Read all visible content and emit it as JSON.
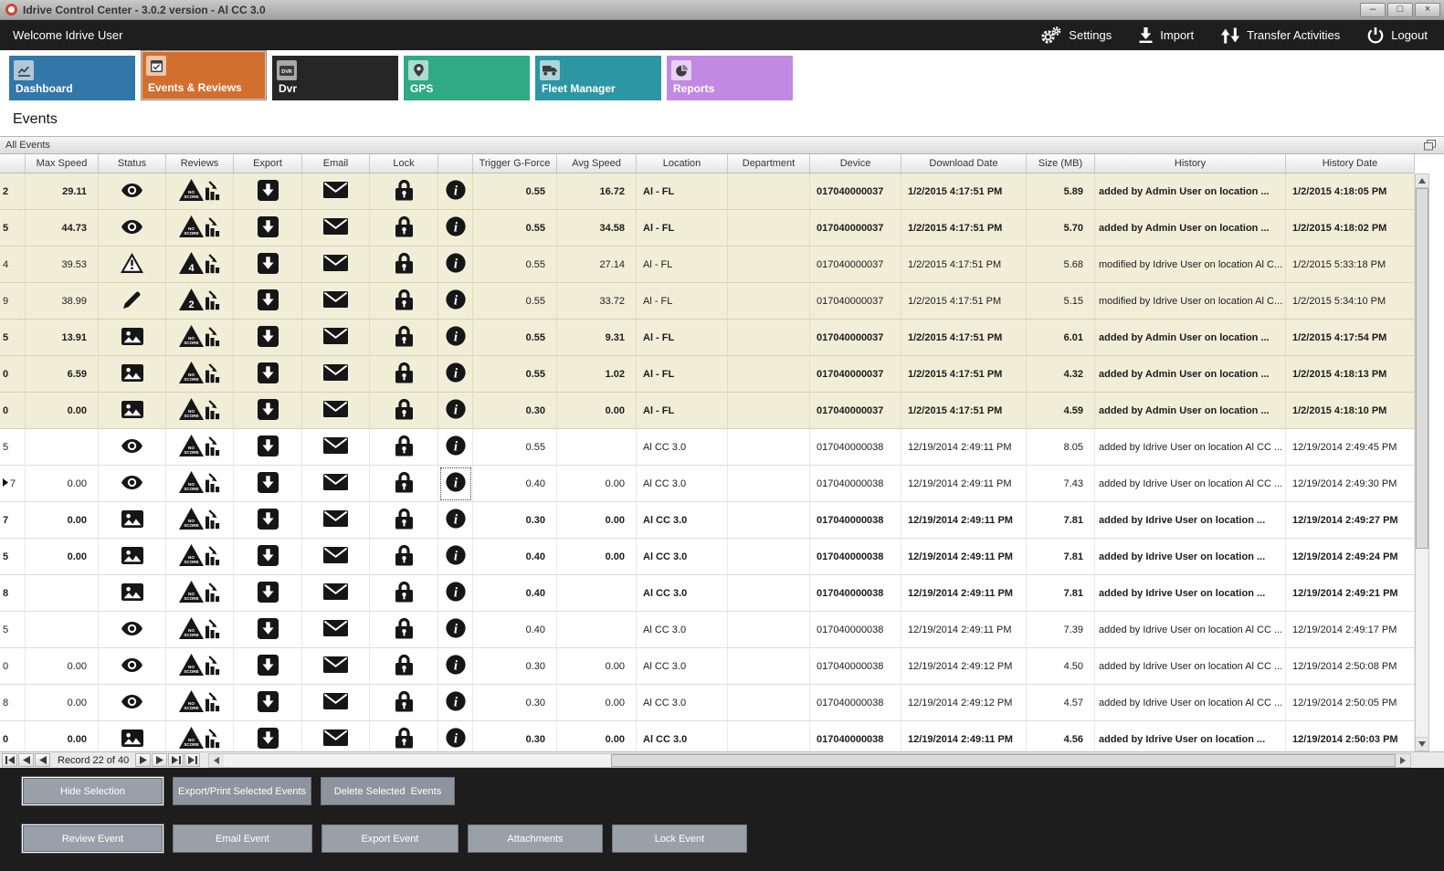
{
  "theme": {
    "unreviewed_row_color": "#f1eed7",
    "topbar_bg": "#1e1e1e",
    "bottom_panel_bg": "#1d1d1d",
    "active_tab_color": "#d26f2f"
  },
  "window": {
    "title": "Idrive Control Center - 3.0.2 version - Al CC 3.0",
    "minimize": "–",
    "maximize": "□",
    "close": "×"
  },
  "topbar": {
    "welcome": "Welcome Idrive User",
    "actions": [
      {
        "id": "settings",
        "label": "Settings",
        "icon": "gear-icon"
      },
      {
        "id": "import",
        "label": "Import",
        "icon": "import-icon"
      },
      {
        "id": "transfer-activities",
        "label": "Transfer Activities",
        "icon": "transfer-icon"
      },
      {
        "id": "logout",
        "label": "Logout",
        "icon": "power-icon"
      }
    ]
  },
  "tabs": [
    {
      "id": "dashboard",
      "label": "Dashboard",
      "color": "#3377a8",
      "active": false,
      "icon": "chart-line-icon"
    },
    {
      "id": "events-reviews",
      "label": "Events & Reviews",
      "color": "#d26f2f",
      "active": true,
      "icon": "calendar-icon"
    },
    {
      "id": "dvr",
      "label": "Dvr",
      "color": "#262626",
      "active": false,
      "icon": "dvr-icon"
    },
    {
      "id": "gps",
      "label": "GPS",
      "color": "#2eaa84",
      "active": false,
      "icon": "map-pin-icon"
    },
    {
      "id": "fleet-manager",
      "label": "Fleet Manager",
      "color": "#2c96a3",
      "active": false,
      "icon": "truck-icon"
    },
    {
      "id": "reports",
      "label": "Reports",
      "color": "#c289e2",
      "active": false,
      "icon": "pie-icon"
    }
  ],
  "page": {
    "heading": "Events",
    "panel_title": "All Events"
  },
  "grid": {
    "columns": [
      "",
      "Max Speed",
      "Status",
      "Reviews",
      "Export",
      "Email",
      "Lock",
      "",
      "Trigger G-Force",
      "Avg Speed",
      "Location",
      "Department",
      "Device",
      "Download Date",
      "Size (MB)",
      "History",
      "History Date"
    ],
    "rows": [
      {
        "rowid": "2",
        "max_speed": "29.11",
        "status": "eye",
        "score": "NO SCORE",
        "trigger": "0.55",
        "avg_speed": "16.72",
        "location": "Al - FL",
        "department": "",
        "device": "017040000037",
        "download_date": "1/2/2015 4:17:51 PM",
        "size": "5.89",
        "history": "added by Admin User on location ...",
        "history_date": "1/2/2015 4:18:05 PM",
        "bold": true,
        "shade": "beige",
        "current": false,
        "selected_info": false
      },
      {
        "rowid": "5",
        "max_speed": "44.73",
        "status": "eye",
        "score": "NO SCORE",
        "trigger": "0.55",
        "avg_speed": "34.58",
        "location": "Al - FL",
        "department": "",
        "device": "017040000037",
        "download_date": "1/2/2015 4:17:51 PM",
        "size": "5.70",
        "history": "added by Admin User on location ...",
        "history_date": "1/2/2015 4:18:02 PM",
        "bold": true,
        "shade": "beige",
        "current": false,
        "selected_info": false
      },
      {
        "rowid": "4",
        "max_speed": "39.53",
        "status": "warning",
        "score": "4",
        "trigger": "0.55",
        "avg_speed": "27.14",
        "location": "Al - FL",
        "department": "",
        "device": "017040000037",
        "download_date": "1/2/2015 4:17:51 PM",
        "size": "5.68",
        "history": "modified by Idrive User on location Al C...",
        "history_date": "1/2/2015 5:33:18 PM",
        "bold": false,
        "shade": "beige",
        "current": false,
        "selected_info": false
      },
      {
        "rowid": "9",
        "max_speed": "38.99",
        "status": "pencil",
        "score": "2",
        "trigger": "0.55",
        "avg_speed": "33.72",
        "location": "Al - FL",
        "department": "",
        "device": "017040000037",
        "download_date": "1/2/2015 4:17:51 PM",
        "size": "5.15",
        "history": "modified by Idrive User on location Al C...",
        "history_date": "1/2/2015 5:34:10 PM",
        "bold": false,
        "shade": "beige",
        "current": false,
        "selected_info": false
      },
      {
        "rowid": "5",
        "max_speed": "13.91",
        "status": "image",
        "score": "NO SCORE",
        "trigger": "0.55",
        "avg_speed": "9.31",
        "location": "Al - FL",
        "department": "",
        "device": "017040000037",
        "download_date": "1/2/2015 4:17:51 PM",
        "size": "6.01",
        "history": "added by Admin User on location ...",
        "history_date": "1/2/2015 4:17:54 PM",
        "bold": true,
        "shade": "beige",
        "current": false,
        "selected_info": false
      },
      {
        "rowid": "0",
        "max_speed": "6.59",
        "status": "image",
        "score": "NO SCORE",
        "trigger": "0.55",
        "avg_speed": "1.02",
        "location": "Al - FL",
        "department": "",
        "device": "017040000037",
        "download_date": "1/2/2015 4:17:51 PM",
        "size": "4.32",
        "history": "added by Admin User on location ...",
        "history_date": "1/2/2015 4:18:13 PM",
        "bold": true,
        "shade": "beige",
        "current": false,
        "selected_info": false
      },
      {
        "rowid": "0",
        "max_speed": "0.00",
        "status": "image",
        "score": "NO SCORE",
        "trigger": "0.30",
        "avg_speed": "0.00",
        "location": "Al - FL",
        "department": "",
        "device": "017040000037",
        "download_date": "1/2/2015 4:17:51 PM",
        "size": "4.59",
        "history": "added by Admin User on location ...",
        "history_date": "1/2/2015 4:18:10 PM",
        "bold": true,
        "shade": "beige",
        "current": false,
        "selected_info": false
      },
      {
        "rowid": "5",
        "max_speed": "",
        "status": "eye",
        "score": "NO SCORE",
        "trigger": "0.55",
        "avg_speed": "",
        "location": "Al CC 3.0",
        "department": "",
        "device": "017040000038",
        "download_date": "12/19/2014 2:49:11 PM",
        "size": "8.05",
        "history": "added by Idrive User on location Al CC ...",
        "history_date": "12/19/2014 2:49:45 PM",
        "bold": false,
        "shade": "white",
        "current": false,
        "selected_info": false
      },
      {
        "rowid": "7",
        "max_speed": "0.00",
        "status": "eye",
        "score": "NO SCORE",
        "trigger": "0.40",
        "avg_speed": "0.00",
        "location": "Al CC 3.0",
        "department": "",
        "device": "017040000038",
        "download_date": "12/19/2014 2:49:11 PM",
        "size": "7.43",
        "history": "added by Idrive User on location Al CC ...",
        "history_date": "12/19/2014 2:49:30 PM",
        "bold": false,
        "shade": "white",
        "current": true,
        "selected_info": true
      },
      {
        "rowid": "7",
        "max_speed": "0.00",
        "status": "image",
        "score": "NO SCORE",
        "trigger": "0.30",
        "avg_speed": "0.00",
        "location": "Al CC 3.0",
        "department": "",
        "device": "017040000038",
        "download_date": "12/19/2014 2:49:11 PM",
        "size": "7.81",
        "history": "added by Idrive User on location ...",
        "history_date": "12/19/2014 2:49:27 PM",
        "bold": true,
        "shade": "white",
        "current": false,
        "selected_info": false
      },
      {
        "rowid": "5",
        "max_speed": "0.00",
        "status": "image",
        "score": "NO SCORE",
        "trigger": "0.40",
        "avg_speed": "0.00",
        "location": "Al CC 3.0",
        "department": "",
        "device": "017040000038",
        "download_date": "12/19/2014 2:49:11 PM",
        "size": "7.81",
        "history": "added by Idrive User on location ...",
        "history_date": "12/19/2014 2:49:24 PM",
        "bold": true,
        "shade": "white",
        "current": false,
        "selected_info": false
      },
      {
        "rowid": "8",
        "max_speed": "",
        "status": "image",
        "score": "NO SCORE",
        "trigger": "0.40",
        "avg_speed": "",
        "location": "Al CC 3.0",
        "department": "",
        "device": "017040000038",
        "download_date": "12/19/2014 2:49:11 PM",
        "size": "7.81",
        "history": "added by Idrive User on location ...",
        "history_date": "12/19/2014 2:49:21 PM",
        "bold": true,
        "shade": "white",
        "current": false,
        "selected_info": false
      },
      {
        "rowid": "5",
        "max_speed": "",
        "status": "eye",
        "score": "NO SCORE",
        "trigger": "0.40",
        "avg_speed": "",
        "location": "Al CC 3.0",
        "department": "",
        "device": "017040000038",
        "download_date": "12/19/2014 2:49:11 PM",
        "size": "7.39",
        "history": "added by Idrive User on location Al CC ...",
        "history_date": "12/19/2014 2:49:17 PM",
        "bold": false,
        "shade": "white",
        "current": false,
        "selected_info": false
      },
      {
        "rowid": "0",
        "max_speed": "0.00",
        "status": "eye",
        "score": "NO SCORE",
        "trigger": "0.30",
        "avg_speed": "0.00",
        "location": "Al CC 3.0",
        "department": "",
        "device": "017040000038",
        "download_date": "12/19/2014 2:49:12 PM",
        "size": "4.50",
        "history": "added by Idrive User on location Al CC ...",
        "history_date": "12/19/2014 2:50:08 PM",
        "bold": false,
        "shade": "white",
        "current": false,
        "selected_info": false
      },
      {
        "rowid": "8",
        "max_speed": "0.00",
        "status": "eye",
        "score": "NO SCORE",
        "trigger": "0.30",
        "avg_speed": "0.00",
        "location": "Al CC 3.0",
        "department": "",
        "device": "017040000038",
        "download_date": "12/19/2014 2:49:12 PM",
        "size": "4.57",
        "history": "added by Idrive User on location Al CC ...",
        "history_date": "12/19/2014 2:50:05 PM",
        "bold": false,
        "shade": "white",
        "current": false,
        "selected_info": false
      },
      {
        "rowid": "0",
        "max_speed": "0.00",
        "status": "image",
        "score": "NO SCORE",
        "trigger": "0.30",
        "avg_speed": "0.00",
        "location": "Al CC 3.0",
        "department": "",
        "device": "017040000038",
        "download_date": "12/19/2014 2:49:11 PM",
        "size": "4.56",
        "history": "added by Idrive User on location ...",
        "history_date": "12/19/2014 2:50:03 PM",
        "bold": true,
        "shade": "white",
        "current": false,
        "selected_info": false
      }
    ]
  },
  "navigator": {
    "record_label": "Record 22 of 40"
  },
  "actions_panel": {
    "row1": [
      {
        "label": "Hide Selection",
        "focused": true
      },
      {
        "label": "Export/Print Selected Events",
        "focused": false
      },
      {
        "label": "Delete Selected  Events",
        "focused": false
      }
    ],
    "row2": [
      {
        "label": "Review Event",
        "focused": true
      },
      {
        "label": "Email Event",
        "focused": false
      },
      {
        "label": "Export Event",
        "focused": false
      },
      {
        "label": "Attachments",
        "focused": false
      },
      {
        "label": "Lock Event",
        "focused": false
      }
    ]
  }
}
